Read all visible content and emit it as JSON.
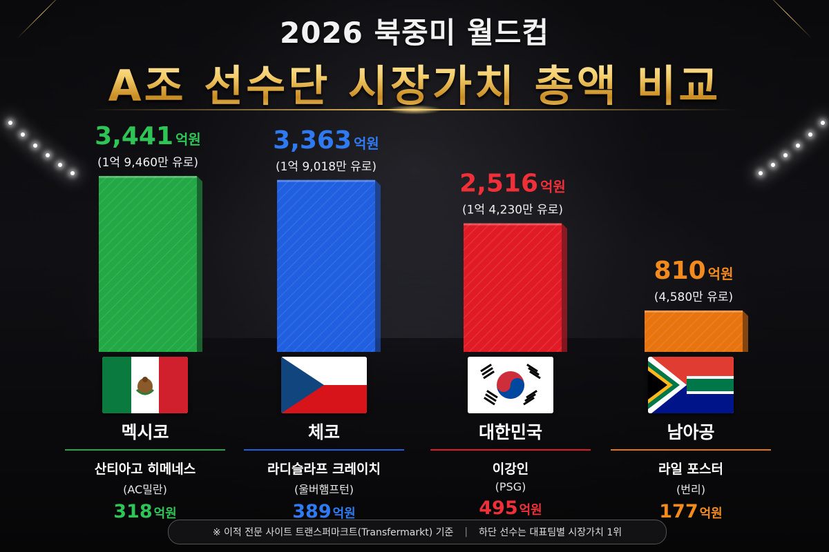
{
  "title": {
    "line1": "2026 북중미 월드컵",
    "line2": "A조 선수단 시장가치 총액 비교"
  },
  "chart_data": {
    "type": "bar",
    "categories": [
      "멕시코",
      "체코",
      "대한민국",
      "남아공"
    ],
    "values": [
      3441,
      3363,
      2516,
      810
    ],
    "unit": "억원",
    "ylim": [
      0,
      3441
    ],
    "labels": [
      "3,441",
      "3,363",
      "2,516",
      "810"
    ],
    "euro_labels": [
      "(1억 9,460만 유로)",
      "(1억 9,018만 유로)",
      "(1억 4,230만 유로)",
      "(4,580만 유로)"
    ],
    "colors": [
      "#22a845",
      "#1f5fe0",
      "#e11b26",
      "#e8740f"
    ],
    "label_colors": [
      "#2fc456",
      "#2f7af0",
      "#f03038",
      "#f28a1e"
    ],
    "title": "",
    "xlabel": "",
    "ylabel": ""
  },
  "countries": [
    {
      "name": "멕시코",
      "player": "산티아고 히메네스",
      "club": "(AC밀란)",
      "value": "318",
      "unit": "억원",
      "flag_icon": "mexico-flag-icon"
    },
    {
      "name": "체코",
      "player": "라디슬라프 크레이치",
      "club": "(울버햄프턴)",
      "value": "389",
      "unit": "억원",
      "flag_icon": "czech-flag-icon"
    },
    {
      "name": "대한민국",
      "player": "이강인",
      "club": "(PSG)",
      "value": "495",
      "unit": "억원",
      "flag_icon": "korea-flag-icon"
    },
    {
      "name": "남아공",
      "player": "라일 포스터",
      "club": "(번리)",
      "value": "177",
      "unit": "억원",
      "flag_icon": "south-africa-flag-icon"
    }
  ],
  "footnote": {
    "left": "※ 이적 전문 사이트 트랜스퍼마크트(Transfermarkt) 기준",
    "separator": "|",
    "right": "하단 선수는 대표팀별 시장가치 1위"
  }
}
